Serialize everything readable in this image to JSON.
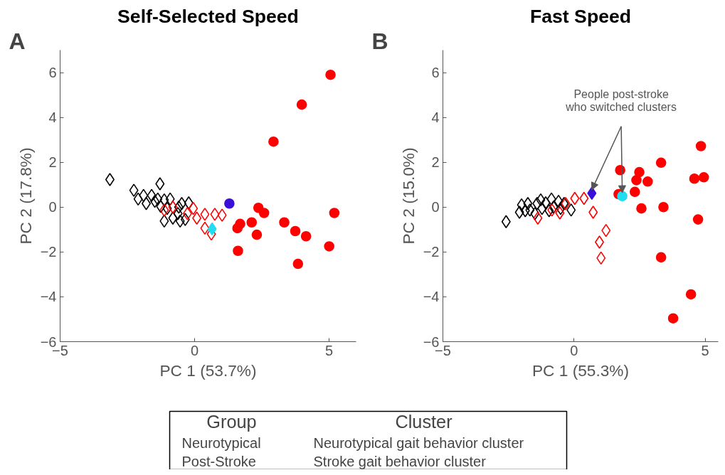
{
  "chart_data": [
    {
      "type": "scatter",
      "title": "Self-Selected Speed",
      "xlabel": "PC 1 (53.7%)",
      "ylabel": "PC 2 (17.8%)",
      "xlim": [
        -5,
        6
      ],
      "ylim": [
        -6,
        7
      ],
      "xticks": [
        -5,
        0,
        5
      ],
      "yticks": [
        -6,
        -4,
        -2,
        0,
        2,
        4,
        6
      ],
      "grid": false,
      "annotations": [
        "A"
      ],
      "series": [
        {
          "color": "#000000",
          "marker": "diamond",
          "x": [
            -3.15,
            -1.29,
            -2.26,
            -2.1,
            -1.9,
            -1.8,
            -1.6,
            -1.48,
            -1.37,
            -1.26,
            -1.13,
            -0.91,
            -1.02,
            -1.13,
            -0.81,
            -0.59,
            -0.48,
            -0.54,
            -0.35,
            -0.22,
            -0.62
          ],
          "values": [
            1.23,
            1.04,
            0.75,
            0.36,
            0.52,
            0.16,
            0.52,
            0.26,
            0.36,
            0.03,
            0.32,
            0.36,
            -0.06,
            -0.62,
            -0.49,
            0,
            0.16,
            -0.62,
            -0.55,
            0.19,
            -0.29
          ]
        },
        {
          "color": "#ff0000",
          "marker": "diamond",
          "x": [
            -1.13,
            -0.81,
            -0.27,
            -0.05,
            0.08,
            0.38,
            0.75,
            1.02,
            0.38,
            0.62
          ],
          "values": [
            -0.13,
            0,
            -0.29,
            -0.06,
            -0.49,
            -0.32,
            -0.32,
            -0.36,
            -0.94,
            -1.2
          ]
        },
        {
          "color": "#ff0000",
          "marker": "circle",
          "x": [
            5.05,
            3.98,
            2.93,
            2.37,
            2.58,
            5.19,
            1.69,
            1.59,
            2.12,
            2.31,
            3.33,
            3.74,
            4.14,
            5.0,
            1.61,
            3.84
          ],
          "values": [
            5.9,
            4.57,
            2.92,
            -0.03,
            -0.26,
            -0.26,
            -0.75,
            -0.94,
            -0.68,
            -1.23,
            -0.68,
            -1.07,
            -1.3,
            -1.75,
            -1.95,
            -2.53
          ]
        },
        {
          "color": "#3a10d8",
          "marker": "circle",
          "x": [
            1.29
          ],
          "values": [
            0.16
          ]
        },
        {
          "color": "#22ddf0",
          "marker": "diamond",
          "x": [
            0.65
          ],
          "values": [
            -0.97
          ]
        }
      ]
    },
    {
      "type": "scatter",
      "title": "Fast Speed",
      "xlabel": "PC 1 (55.3%)",
      "ylabel": "PC 2 (15.0%)",
      "xlim": [
        -5,
        5.5
      ],
      "ylim": [
        -6,
        7
      ],
      "xticks": [
        -5,
        0,
        5
      ],
      "yticks": [
        -6,
        -4,
        -2,
        0,
        2,
        4,
        6
      ],
      "grid": false,
      "annotations": [
        "B",
        {
          "text": "People post-stroke\nwho switched clusters",
          "x": 0.68,
          "y": 0.62
        }
      ],
      "series": [
        {
          "color": "#000000",
          "marker": "diamond",
          "x": [
            -2.59,
            -2.08,
            -2.0,
            -1.86,
            -1.76,
            -1.68,
            -1.49,
            -1.41,
            -1.27,
            -1.22,
            -1.08,
            -0.95,
            -0.86,
            -0.78,
            -0.59,
            -0.51,
            -0.38,
            -0.11
          ],
          "values": [
            -0.65,
            -0.23,
            0.1,
            -0.16,
            0.16,
            -0.13,
            -0.29,
            0.16,
            0.32,
            -0.06,
            0.19,
            -0.16,
            0.36,
            0,
            0.26,
            -0.06,
            0.16,
            -0.13
          ]
        },
        {
          "color": "#ff0000",
          "marker": "diamond",
          "x": [
            -1.38,
            -0.84,
            -0.54,
            -0.32,
            0.03,
            0.38,
            0.73,
            1.22,
            0.97,
            1.03
          ],
          "values": [
            -0.49,
            -0.13,
            -0.26,
            0.16,
            0.39,
            0.39,
            -0.23,
            -1.04,
            -1.56,
            -2.27
          ]
        },
        {
          "color": "#ff0000",
          "marker": "circle",
          "x": [
            1.7,
            1.76,
            2.49,
            2.38,
            2.81,
            2.32,
            3.32,
            4.84,
            4.59,
            4.95,
            2.57,
            3.41,
            4.73,
            3.32,
            4.46,
            3.78
          ],
          "values": [
            0.58,
            1.65,
            1.56,
            1.2,
            1.14,
            0.68,
            1.98,
            2.72,
            1.27,
            1.33,
            -0.06,
            0,
            -0.55,
            -2.24,
            -3.89,
            -4.96
          ]
        },
        {
          "color": "#3a10d8",
          "marker": "diamond",
          "x": [
            0.68
          ],
          "values": [
            0.62
          ]
        },
        {
          "color": "#22ddf0",
          "marker": "circle",
          "x": [
            1.84
          ],
          "values": [
            0.49
          ]
        }
      ]
    },
    {
      "type": "other",
      "annotations": [
        "Group",
        "Cluster",
        "Neurotypical",
        "Post-Stroke",
        "Neurotypical gait behavior cluster",
        "Stroke gait behavior cluster"
      ]
    }
  ]
}
